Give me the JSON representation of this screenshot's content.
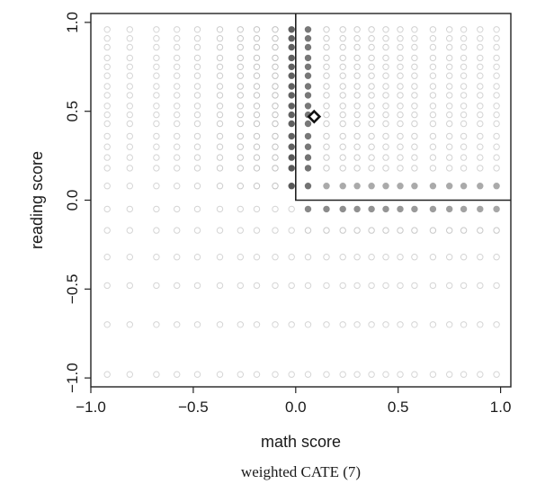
{
  "chart_data": {
    "type": "scatter",
    "xlabel": "math score",
    "ylabel": "reading score",
    "caption": "weighted CATE (7)",
    "xlim": [
      -1.0,
      1.05
    ],
    "ylim": [
      -1.05,
      1.05
    ],
    "xticks": [
      -1.0,
      -0.5,
      0.0,
      0.5,
      1.0
    ],
    "yticks": [
      -1.0,
      -0.5,
      0.0,
      0.5,
      1.0
    ],
    "xtick_labels": [
      "−1.0",
      "−0.5",
      "0.0",
      "0.5",
      "1.0"
    ],
    "ytick_labels": [
      "−1.0",
      "−0.5",
      "0.0",
      "0.5",
      "1.0"
    ],
    "grid": false,
    "x_grid": [
      -0.92,
      -0.81,
      -0.68,
      -0.58,
      -0.48,
      -0.37,
      -0.27,
      -0.19,
      -0.1,
      -0.02,
      0.06,
      0.15,
      0.23,
      0.3,
      0.37,
      0.44,
      0.51,
      0.58,
      0.67,
      0.75,
      0.82,
      0.9,
      0.98
    ],
    "y_grid": [
      -0.98,
      -0.7,
      -0.48,
      -0.32,
      -0.17,
      -0.05,
      0.08,
      0.18,
      0.24,
      0.3,
      0.36,
      0.43,
      0.48,
      0.53,
      0.59,
      0.64,
      0.7,
      0.75,
      0.8,
      0.86,
      0.91,
      0.96
    ],
    "shading": "marker darkness shows the weighted CATE; darkest near math score 0 and reading score 0",
    "point_color_light": "#e3e3e3",
    "point_color_dark": "#3a3a3a",
    "highlight_point": {
      "x": 0.09,
      "y": 0.47,
      "marker": "diamond"
    },
    "region_boundary": {
      "x_min": 0.0,
      "y_min": 0.0
    }
  }
}
